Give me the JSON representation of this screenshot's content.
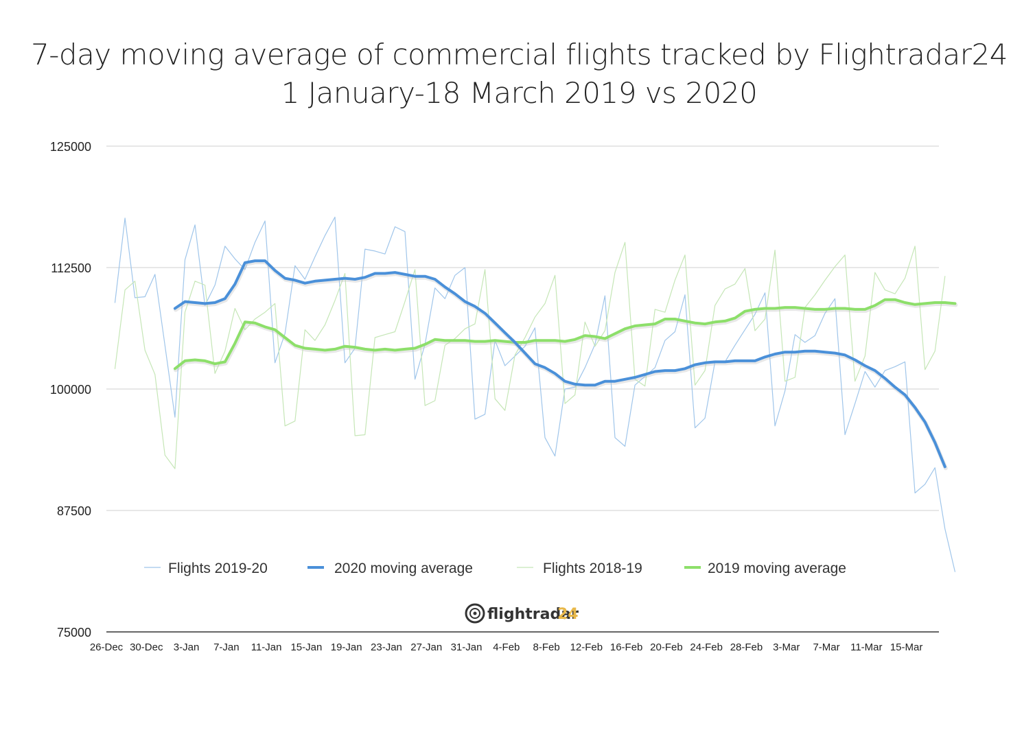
{
  "chart_data": {
    "type": "line",
    "title": "7-day moving average of commercial flights tracked by Flightradar24",
    "subtitle": "1 January-18 March 2019 vs 2020",
    "ylim": [
      75000,
      125000
    ],
    "yticks": [
      "125000",
      "112500",
      "100000",
      "87500",
      "75000"
    ],
    "ytick_values": [
      125000,
      112500,
      100000,
      87500,
      75000
    ],
    "xlabel": "",
    "ylabel": "",
    "xtick_labels": [
      "26-Dec",
      "30-Dec",
      "3-Jan",
      "7-Jan",
      "11-Jan",
      "15-Jan",
      "19-Jan",
      "23-Jan",
      "27-Jan",
      "31-Jan",
      "4-Feb",
      "8-Feb",
      "12-Feb",
      "16-Feb",
      "20-Feb",
      "24-Feb",
      "28-Feb",
      "3-Mar",
      "7-Mar",
      "11-Mar",
      "15-Mar"
    ],
    "x_start": "26-Dec",
    "grid": true,
    "legend_position": "bottom",
    "series": [
      {
        "name": "Flights 2019-20",
        "color": "#9fc5ea",
        "style": "thin",
        "x_offset": 0,
        "values": [
          108900,
          117600,
          109400,
          109500,
          111800,
          104500,
          97100,
          113300,
          116900,
          108600,
          110700,
          114700,
          113400,
          112300,
          115100,
          117300,
          102700,
          105700,
          112700,
          111300,
          113600,
          115800,
          117700,
          102700,
          104200,
          114400,
          114200,
          113900,
          116700,
          116200,
          101000,
          104600,
          110400,
          109300,
          111700,
          112500,
          96900,
          97400,
          105000,
          102400,
          103400,
          104400,
          106300,
          95000,
          93100,
          100000,
          100200,
          102200,
          104600,
          109600,
          95000,
          94100,
          100400,
          101300,
          102200,
          105000,
          105900,
          109700,
          96000,
          97000,
          102800,
          102800,
          104500,
          106100,
          107700,
          109900,
          96200,
          99800,
          105600,
          104800,
          105500,
          107800,
          109300,
          95300,
          98500,
          101800,
          100200,
          101900,
          102300,
          102800,
          89300,
          90200,
          91900,
          85600,
          81200
        ]
      },
      {
        "name": "2020 moving average",
        "color": "#4a90d9",
        "style": "thick",
        "x_offset": 6,
        "values": [
          108300,
          109000,
          108900,
          108800,
          108900,
          109300,
          110800,
          113000,
          113200,
          113200,
          112200,
          111400,
          111200,
          110900,
          111100,
          111200,
          111300,
          111400,
          111300,
          111500,
          111900,
          111900,
          112000,
          111800,
          111600,
          111600,
          111300,
          110500,
          109800,
          109000,
          108500,
          107800,
          106800,
          105800,
          104800,
          103700,
          102600,
          102200,
          101600,
          100800,
          100500,
          100400,
          100400,
          100800,
          100800,
          101000,
          101200,
          101500,
          101800,
          101900,
          101900,
          102100,
          102500,
          102700,
          102800,
          102800,
          102900,
          102900,
          102900,
          103300,
          103600,
          103800,
          103800,
          103900,
          103900,
          103800,
          103700,
          103500,
          103000,
          102400,
          101900,
          101100,
          100200,
          99400,
          98100,
          96600,
          94500,
          92000
        ]
      },
      {
        "name": "Flights 2018-19",
        "color": "#c5e6b6",
        "style": "thin",
        "x_offset": 0,
        "values": [
          102100,
          110200,
          111100,
          104000,
          101500,
          93200,
          91800,
          107900,
          111100,
          110700,
          101600,
          103900,
          108300,
          106100,
          107200,
          107900,
          108800,
          96200,
          96700,
          106100,
          105000,
          106600,
          109100,
          111900,
          95200,
          95300,
          105300,
          105600,
          105900,
          109000,
          112300,
          98300,
          98800,
          104500,
          105200,
          106200,
          106700,
          112300,
          99000,
          97800,
          103500,
          105300,
          107400,
          108800,
          111700,
          98500,
          99400,
          106900,
          104400,
          106000,
          112000,
          115100,
          101000,
          100300,
          108200,
          107900,
          111200,
          113800,
          100400,
          101900,
          108600,
          110300,
          110800,
          112400,
          106000,
          107200,
          114300,
          100800,
          101200,
          108400,
          109700,
          111200,
          112600,
          113800,
          100800,
          103400,
          112000,
          110200,
          109800,
          111400,
          114700,
          102000,
          103900,
          111600
        ]
      },
      {
        "name": "2019 moving average",
        "color": "#8ddf6a",
        "style": "thick",
        "x_offset": 6,
        "values": [
          102100,
          102900,
          103000,
          102900,
          102600,
          102800,
          104700,
          106900,
          106800,
          106400,
          106100,
          105300,
          104500,
          104200,
          104100,
          104000,
          104100,
          104400,
          104300,
          104100,
          104000,
          104100,
          104000,
          104100,
          104200,
          104600,
          105100,
          105000,
          105000,
          105000,
          104900,
          104900,
          105000,
          104900,
          104800,
          104800,
          105000,
          105000,
          105000,
          104900,
          105100,
          105500,
          105400,
          105200,
          105700,
          106200,
          106500,
          106600,
          106700,
          107200,
          107200,
          107000,
          106800,
          106700,
          106900,
          107000,
          107300,
          108000,
          108200,
          108300,
          108300,
          108400,
          108400,
          108300,
          108200,
          108200,
          108300,
          108300,
          108200,
          108200,
          108600,
          109200,
          109200,
          108900,
          108700,
          108800,
          108900,
          108900,
          108800
        ]
      }
    ]
  },
  "logo": {
    "text_main": "flightradar",
    "text_suffix": "24",
    "main_color": "#333333",
    "suffix_color": "#e8b84a"
  }
}
